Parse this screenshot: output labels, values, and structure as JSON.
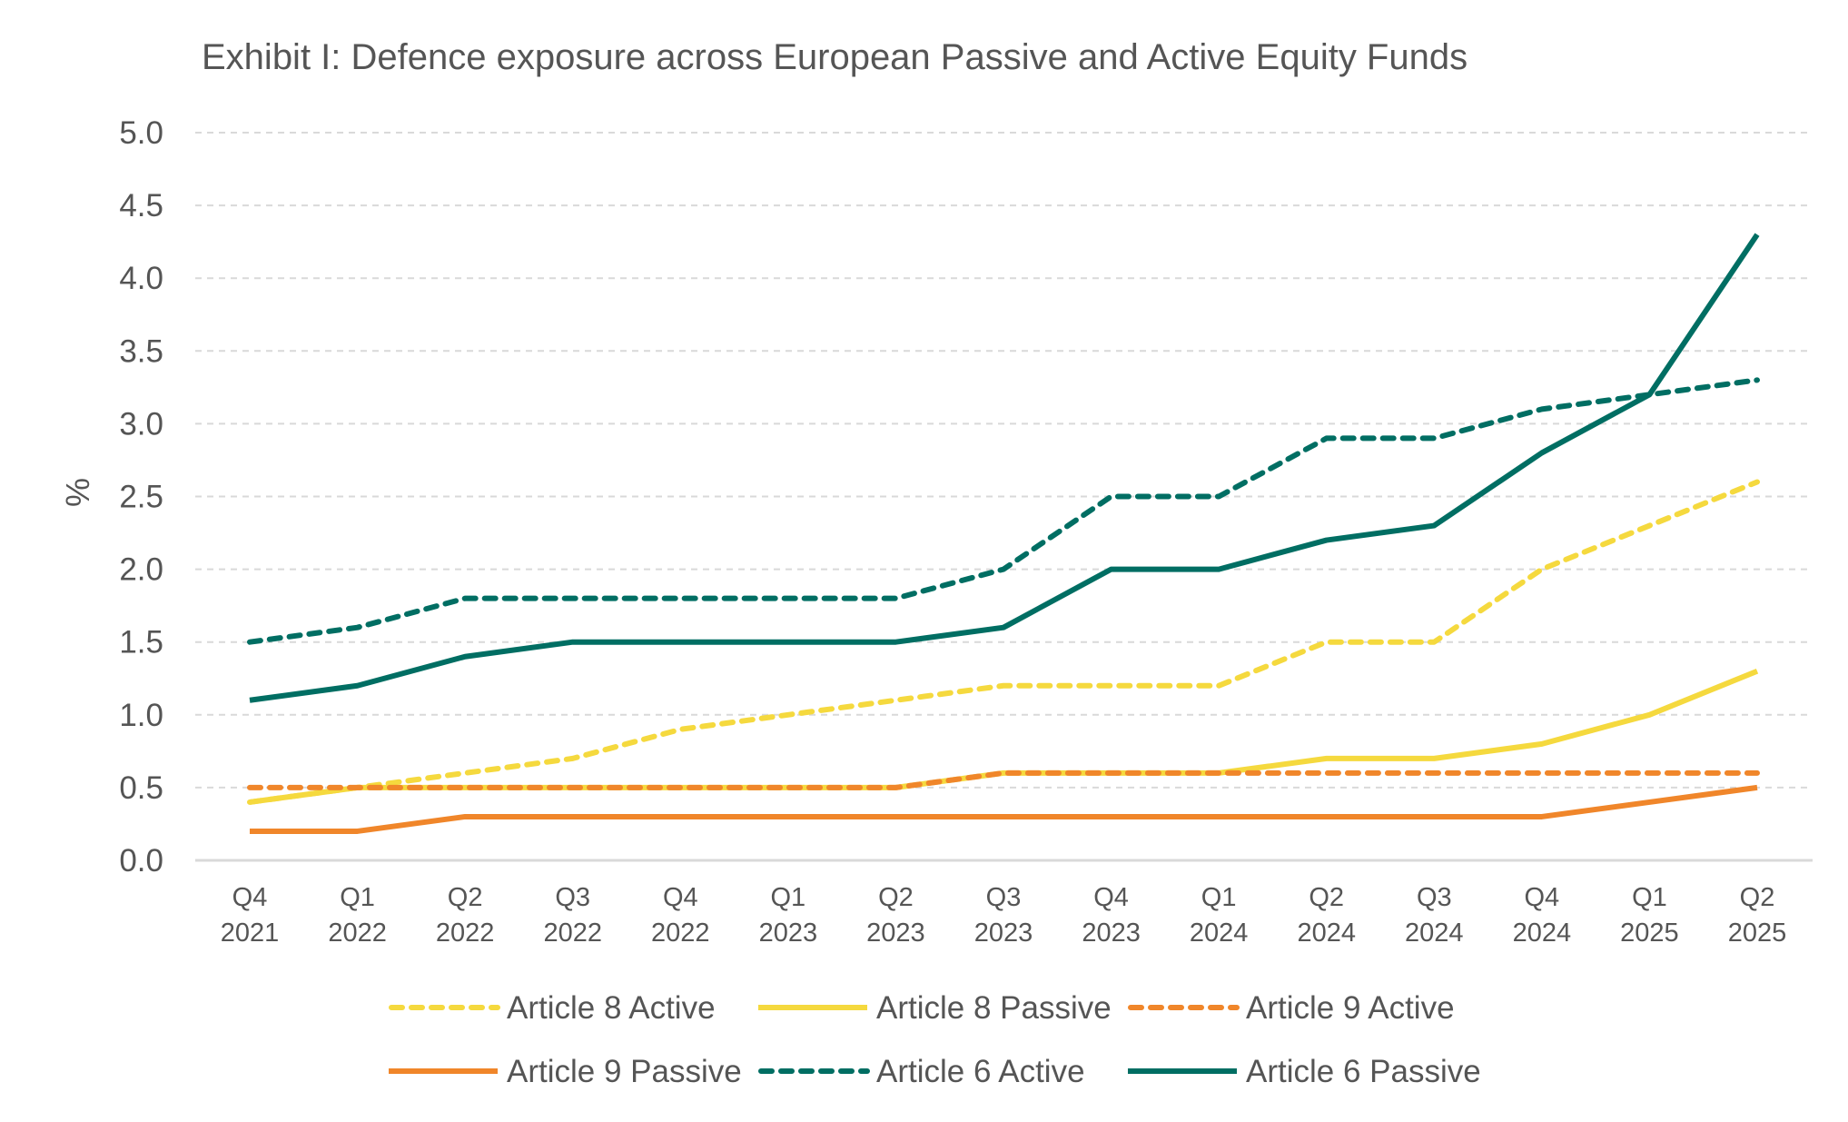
{
  "chart_data": {
    "type": "line",
    "title": "Exhibit I: Defence exposure across European Passive and Active Equity Funds",
    "xlabel": "",
    "ylabel": "%",
    "ylim": [
      0,
      5.0
    ],
    "yticks": [
      "0.0",
      "0.5",
      "1.0",
      "1.5",
      "2.0",
      "2.5",
      "3.0",
      "3.5",
      "4.0",
      "4.5",
      "5.0"
    ],
    "grid": true,
    "legend_position": "bottom",
    "categories": [
      [
        "Q4",
        "2021"
      ],
      [
        "Q1",
        "2022"
      ],
      [
        "Q2",
        "2022"
      ],
      [
        "Q3",
        "2022"
      ],
      [
        "Q4",
        "2022"
      ],
      [
        "Q1",
        "2023"
      ],
      [
        "Q2",
        "2023"
      ],
      [
        "Q3",
        "2023"
      ],
      [
        "Q4",
        "2023"
      ],
      [
        "Q1",
        "2024"
      ],
      [
        "Q2",
        "2024"
      ],
      [
        "Q3",
        "2024"
      ],
      [
        "Q4",
        "2024"
      ],
      [
        "Q1",
        "2025"
      ],
      [
        "Q2",
        "2025"
      ]
    ],
    "series": [
      {
        "name": "Article 8 Active",
        "color": "#F5D93E",
        "dashed": true,
        "values": [
          0.4,
          0.5,
          0.6,
          0.7,
          0.9,
          1.0,
          1.1,
          1.2,
          1.2,
          1.2,
          1.5,
          1.5,
          2.0,
          2.3,
          2.6
        ]
      },
      {
        "name": "Article 8 Passive",
        "color": "#F5D93E",
        "dashed": false,
        "values": [
          0.4,
          0.5,
          0.5,
          0.5,
          0.5,
          0.5,
          0.5,
          0.6,
          0.6,
          0.6,
          0.7,
          0.7,
          0.8,
          1.0,
          1.3
        ]
      },
      {
        "name": "Article 9 Active",
        "color": "#F0862A",
        "dashed": true,
        "values": [
          0.5,
          0.5,
          0.5,
          0.5,
          0.5,
          0.5,
          0.5,
          0.6,
          0.6,
          0.6,
          0.6,
          0.6,
          0.6,
          0.6,
          0.6
        ]
      },
      {
        "name": "Article 9 Passive",
        "color": "#F0862A",
        "dashed": false,
        "values": [
          0.2,
          0.2,
          0.3,
          0.3,
          0.3,
          0.3,
          0.3,
          0.3,
          0.3,
          0.3,
          0.3,
          0.3,
          0.3,
          0.4,
          0.5
        ]
      },
      {
        "name": "Article 6 Active",
        "color": "#006E63",
        "dashed": true,
        "values": [
          1.5,
          1.6,
          1.8,
          1.8,
          1.8,
          1.8,
          1.8,
          2.0,
          2.5,
          2.5,
          2.9,
          2.9,
          3.1,
          3.2,
          3.3
        ]
      },
      {
        "name": "Article 6 Passive",
        "color": "#006E63",
        "dashed": false,
        "values": [
          1.1,
          1.2,
          1.4,
          1.5,
          1.5,
          1.5,
          1.5,
          1.6,
          2.0,
          2.0,
          2.2,
          2.3,
          2.8,
          3.2,
          4.3
        ]
      }
    ]
  }
}
